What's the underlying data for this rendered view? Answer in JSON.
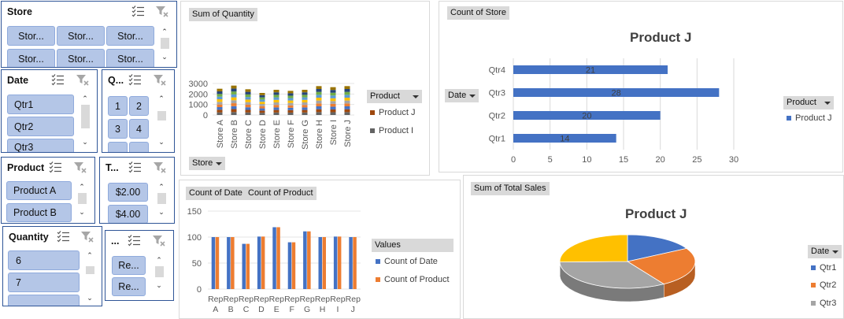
{
  "slicers": {
    "store": {
      "title": "Store",
      "items": [
        "Stor...",
        "Stor...",
        "Stor...",
        "Stor...",
        "Stor...",
        "Stor..."
      ]
    },
    "date": {
      "title": "Date",
      "items": [
        "Qtr1",
        "Qtr2",
        "Qtr3"
      ]
    },
    "quarter": {
      "title": "Q...",
      "items": [
        "1",
        "2",
        "3",
        "4"
      ]
    },
    "product": {
      "title": "Product",
      "items": [
        "Product A",
        "Product B"
      ]
    },
    "total": {
      "title": "T...",
      "items": [
        "$2.00",
        "$4.00"
      ]
    },
    "quantity": {
      "title": "Quantity",
      "items": [
        "6",
        "7"
      ]
    },
    "region": {
      "title": "...",
      "items": [
        "Re...",
        "Re..."
      ]
    }
  },
  "charts": {
    "quantity": {
      "field_button": "Sum of Quantity",
      "axis_dropdown": "Store",
      "legend_dropdown": "Product",
      "legend": [
        "Product J",
        "Product I"
      ],
      "legend_colors": [
        "#9e480e",
        "#636363"
      ]
    },
    "store_count": {
      "field_button": "Count of Store",
      "title": "Product J",
      "axis_dropdown": "Date",
      "legend_dropdown": "Product",
      "legend": [
        "Product J"
      ],
      "legend_colors": [
        "#4472c4"
      ]
    },
    "date_product": {
      "field_buttons": [
        "Count of Date",
        "Count of Product"
      ],
      "legend_header": "Values",
      "legend": [
        "Count of Date",
        "Count of Product"
      ],
      "legend_colors": [
        "#4472c4",
        "#ed7d31"
      ]
    },
    "sales": {
      "field_button": "Sum of Total Sales",
      "title": "Product J",
      "legend_dropdown": "Date",
      "legend": [
        "Qtr1",
        "Qtr2",
        "Qtr3"
      ],
      "legend_colors": [
        "#4472c4",
        "#ed7d31",
        "#a5a5a5"
      ]
    }
  },
  "chart_data": [
    {
      "type": "bar",
      "categories": [
        "Store A",
        "Store B",
        "Store C",
        "Store D",
        "Store E",
        "Store F",
        "Store G",
        "Store H",
        "Store I",
        "Store J"
      ],
      "values": [
        2500,
        2800,
        2450,
        2100,
        2400,
        2300,
        2400,
        2750,
        2650,
        2750
      ],
      "ylim": [
        0,
        3000
      ],
      "yticks": [
        0,
        1000,
        2000,
        3000
      ],
      "series": [
        {
          "name": "Product J",
          "values": [
            250,
            280,
            245,
            210,
            240,
            230,
            240,
            275,
            265,
            275
          ]
        },
        {
          "name": "Product I",
          "values": [
            250,
            280,
            245,
            210,
            240,
            230,
            240,
            275,
            265,
            275
          ]
        }
      ],
      "stack_colors": [
        "#636363",
        "#9e480e",
        "#4472c4",
        "#ed7d31",
        "#a5a5a5",
        "#ffc000",
        "#5b9bd5",
        "#70ad47",
        "#264478",
        "#997300"
      ]
    },
    {
      "type": "bar",
      "orientation": "horizontal",
      "title": "Product J",
      "categories": [
        "Qtr1",
        "Qtr2",
        "Qtr3",
        "Qtr4"
      ],
      "values": [
        14,
        20,
        28,
        21
      ],
      "xlim": [
        0,
        30
      ],
      "xticks": [
        0,
        5,
        10,
        15,
        20,
        25,
        30
      ],
      "series": [
        {
          "name": "Product J",
          "values": [
            14,
            20,
            28,
            21
          ]
        }
      ]
    },
    {
      "type": "bar",
      "categories": [
        "Rep A",
        "Rep B",
        "Rep C",
        "Rep D",
        "Rep E",
        "Rep F",
        "Rep G",
        "Rep H",
        "Rep I",
        "Rep J"
      ],
      "ylim": [
        0,
        150
      ],
      "yticks": [
        0,
        50,
        100,
        150
      ],
      "series": [
        {
          "name": "Count of Date",
          "values": [
            100,
            100,
            87,
            101,
            119,
            90,
            111,
            100,
            101,
            100
          ]
        },
        {
          "name": "Count of Product",
          "values": [
            100,
            100,
            87,
            101,
            119,
            90,
            111,
            100,
            101,
            100
          ]
        }
      ]
    },
    {
      "type": "pie",
      "title": "Product J",
      "categories": [
        "Qtr1",
        "Qtr2",
        "Qtr3",
        "Qtr4"
      ],
      "values": [
        14,
        20,
        28,
        21
      ]
    }
  ]
}
